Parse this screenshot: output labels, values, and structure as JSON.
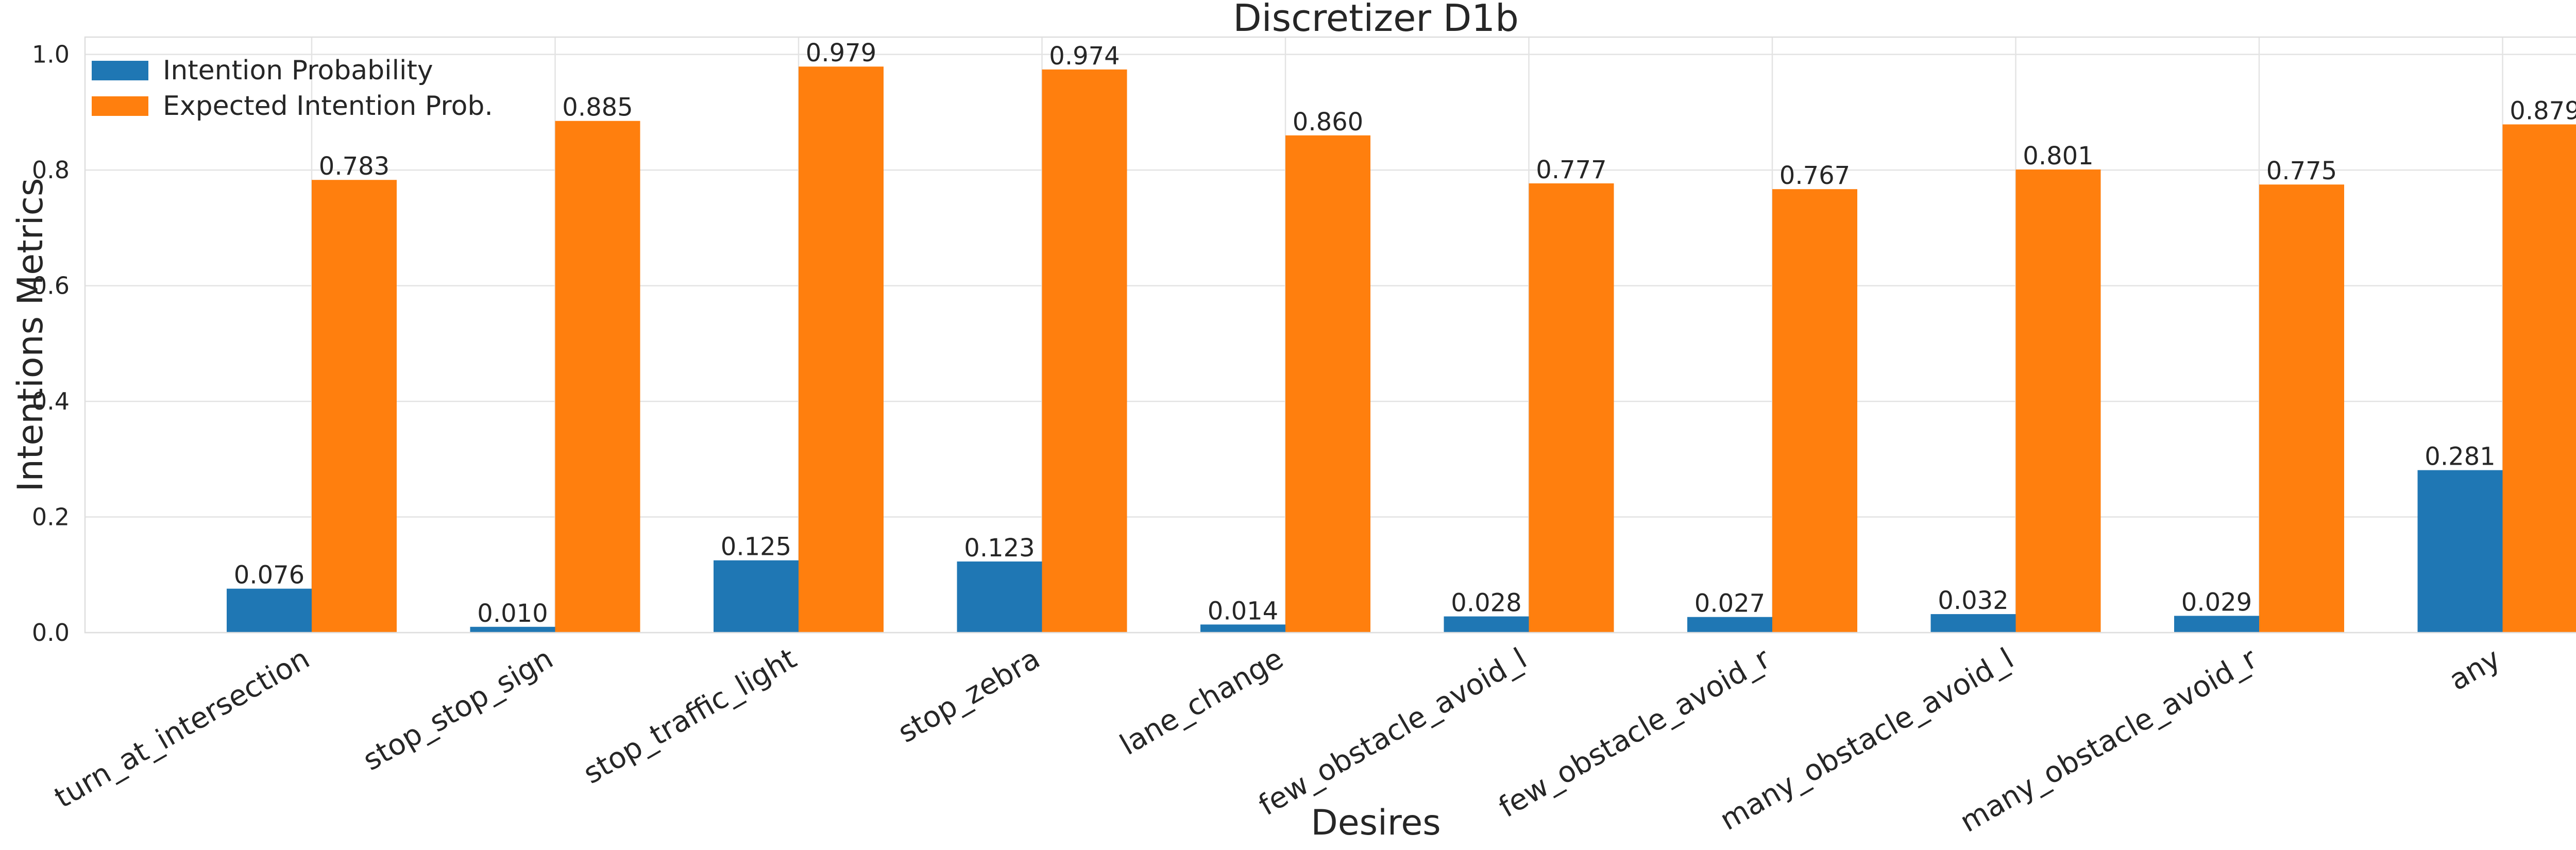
{
  "chart_data": {
    "type": "bar",
    "title": "Discretizer D1b",
    "xlabel": "Desires",
    "ylabel": "Intentions Metrics",
    "ylim": [
      0,
      1.03
    ],
    "yticks": [
      "0.0",
      "0.2",
      "0.4",
      "0.6",
      "0.8",
      "1.0"
    ],
    "grid": true,
    "legend_position": "top-left",
    "categories": [
      "turn_at_intersection",
      "stop_stop_sign",
      "stop_traffic_light",
      "stop_zebra",
      "lane_change",
      "few_obstacle_avoid_l",
      "few_obstacle_avoid_r",
      "many_obstacle_avoid_l",
      "many_obstacle_avoid_r",
      "any"
    ],
    "series": [
      {
        "name": "Intention Probability",
        "color": "#1f77b4",
        "values": [
          0.076,
          0.01,
          0.125,
          0.123,
          0.014,
          0.028,
          0.027,
          0.032,
          0.029,
          0.281
        ],
        "labels": [
          "0.076",
          "0.010",
          "0.125",
          "0.123",
          "0.014",
          "0.028",
          "0.027",
          "0.032",
          "0.029",
          "0.281"
        ]
      },
      {
        "name": "Expected Intention Prob.",
        "color": "#ff7f0e",
        "values": [
          0.783,
          0.885,
          0.979,
          0.974,
          0.86,
          0.777,
          0.767,
          0.801,
          0.775,
          0.879
        ],
        "labels": [
          "0.783",
          "0.885",
          "0.979",
          "0.974",
          "0.860",
          "0.777",
          "0.767",
          "0.801",
          "0.775",
          "0.879"
        ]
      }
    ]
  }
}
